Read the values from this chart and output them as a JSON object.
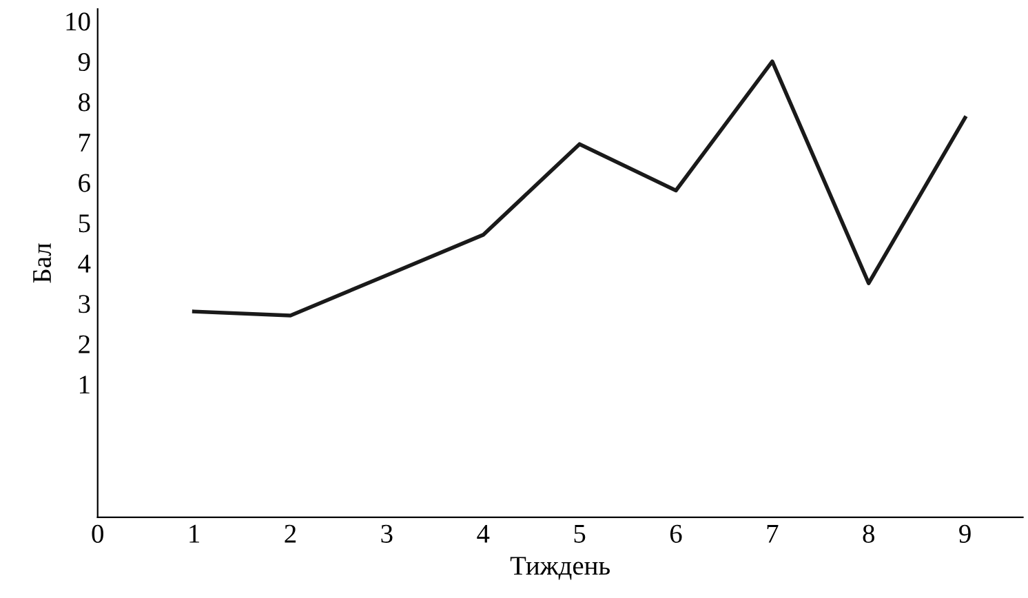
{
  "chart_data": {
    "type": "line",
    "xlabel": "Тиждень",
    "ylabel": "Бал",
    "x": [
      1,
      2,
      3,
      4,
      5,
      6,
      7,
      8,
      9
    ],
    "series": [
      {
        "color": "#1a1a1a",
        "values": [
          2.8,
          2.7,
          3.7,
          4.7,
          6.95,
          5.8,
          9.0,
          3.5,
          7.6
        ]
      }
    ],
    "xlim": [
      0,
      9.6
    ],
    "xticks": [
      0,
      1,
      2,
      3,
      4,
      5,
      6,
      7,
      8,
      9
    ],
    "ylim": [
      -2.3,
      10.3
    ],
    "yticks": [
      1,
      2,
      3,
      4,
      5,
      6,
      7,
      8,
      9,
      10
    ],
    "grid": false,
    "legend": false,
    "marker": "none",
    "line_style": "solid"
  }
}
